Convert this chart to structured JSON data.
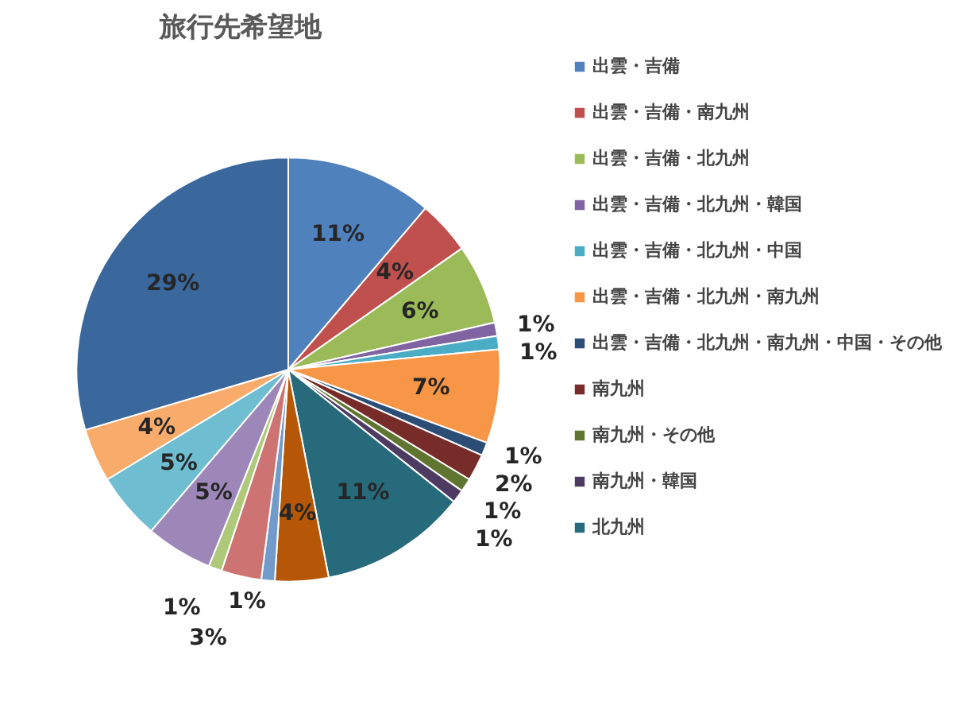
{
  "chart_data": {
    "type": "pie",
    "title": "旅行先希望地",
    "categories": [
      "出雲・吉備",
      "出雲・吉備・南九州",
      "出雲・吉備・北九州",
      "出雲・吉備・北九州・韓国",
      "出雲・吉備・北九州・中国",
      "出雲・吉備・北九州・南九州",
      "出雲・吉備・北九州・南九州・中国・その他",
      "南九州",
      "南九州・その他",
      "南九州・韓国",
      "北九州",
      null,
      null,
      null,
      null,
      null,
      null,
      null,
      null
    ],
    "values": [
      11,
      4,
      6,
      1,
      1,
      7,
      1,
      2,
      1,
      1,
      11,
      4,
      1,
      3,
      1,
      5,
      5,
      4,
      29
    ],
    "colors": [
      "#4f81bd",
      "#c0504d",
      "#9bbb59",
      "#8064a2",
      "#4bacc6",
      "#f79646",
      "#2c4d75",
      "#772c2a",
      "#5f7530",
      "#4d3b62",
      "#276a7c",
      "#b65708",
      "#729aca",
      "#cd7371",
      "#afc97a",
      "#9c87b8",
      "#6fbdd1",
      "#f9ab6b",
      "#3a679c"
    ],
    "value_labels": [
      "11%",
      "4%",
      "6%",
      "1%",
      "1%",
      "7%",
      "1%",
      "2%",
      "1%",
      "1%",
      "11%",
      "4%",
      "1%",
      "3%",
      "1%",
      "5%",
      "5%",
      "4%",
      "29%"
    ],
    "legend": "right"
  }
}
